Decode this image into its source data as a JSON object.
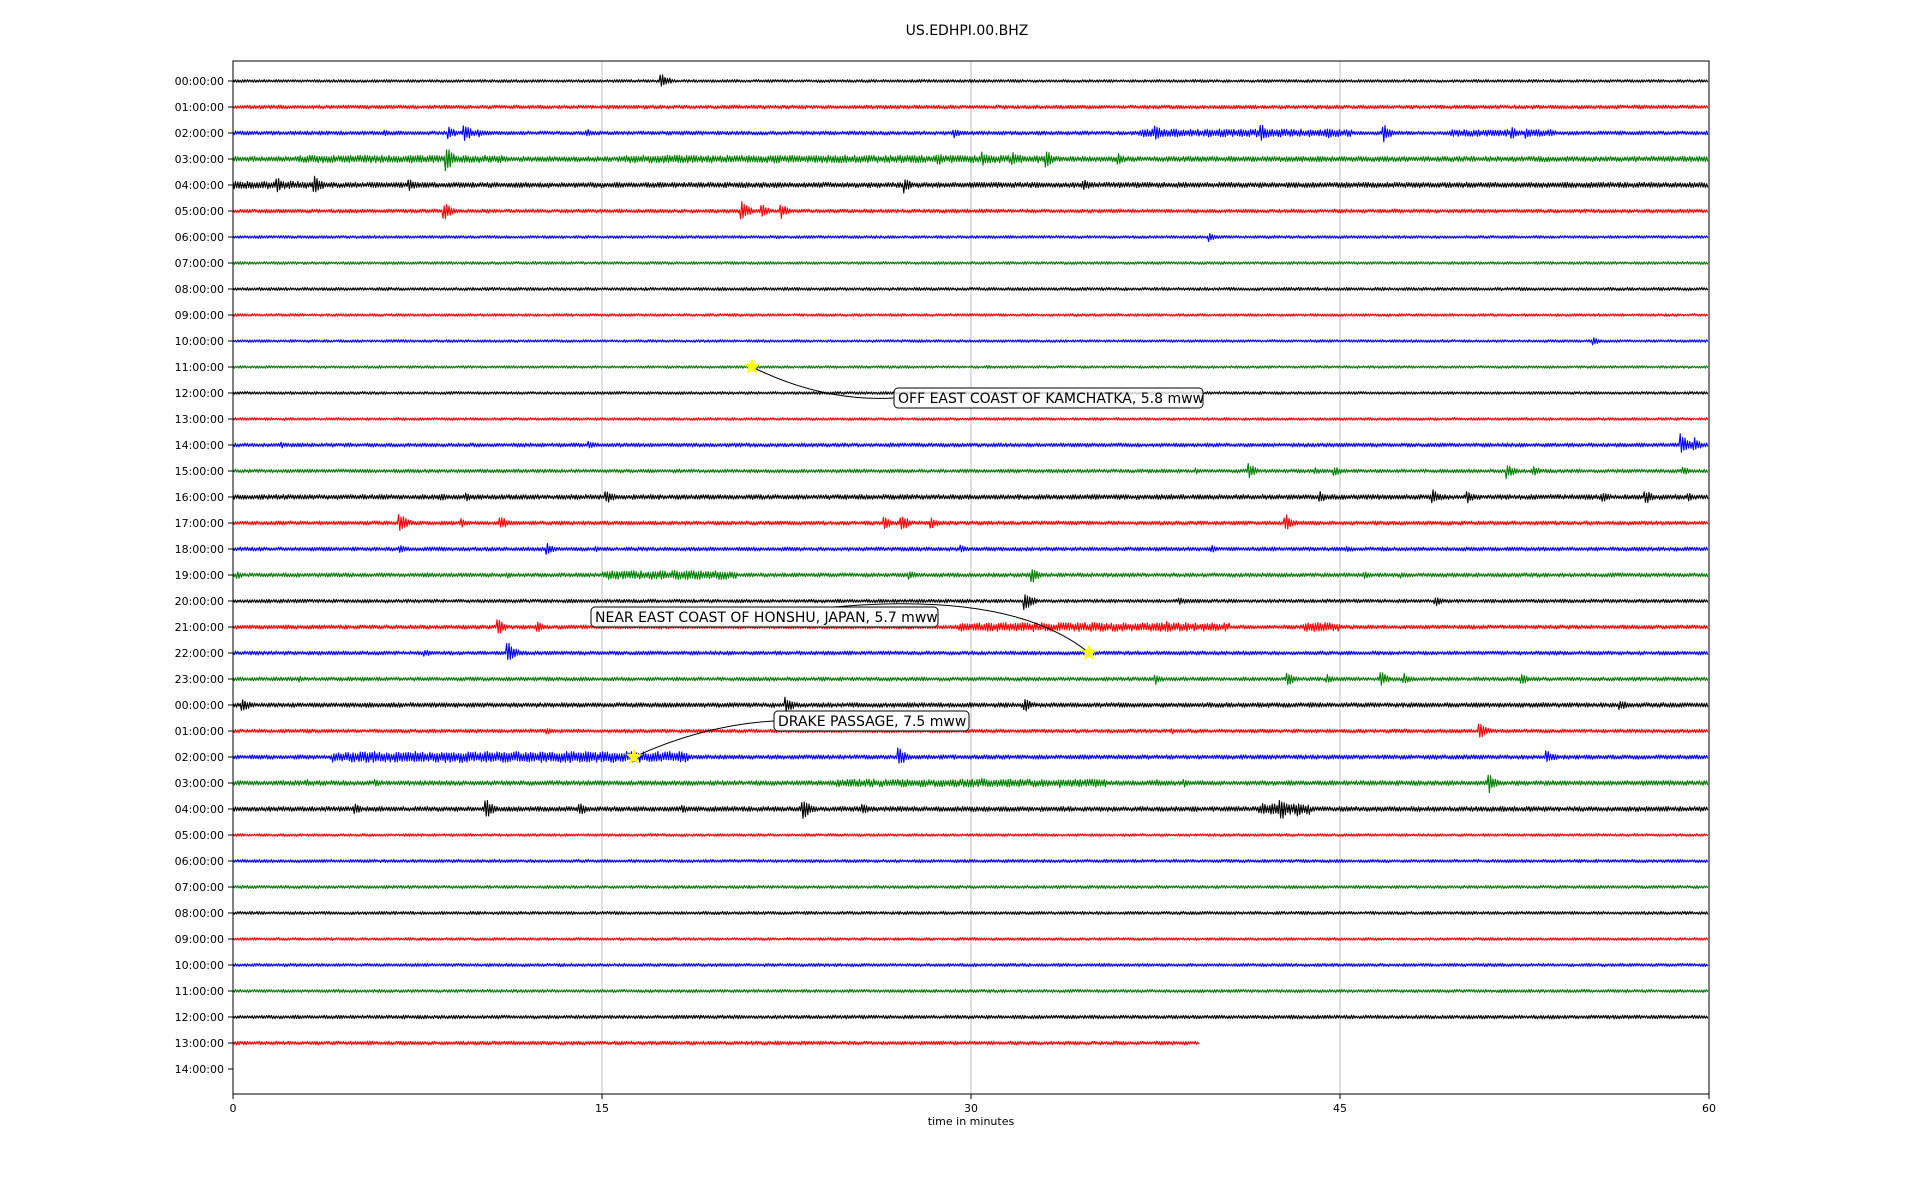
{
  "chart_data": {
    "type": "line",
    "title": "US.EDHPI.00.BHZ",
    "xlabel": "time in minutes",
    "ylabel": "",
    "xlim": [
      0,
      60
    ],
    "x_ticks": [
      0,
      15,
      30,
      45,
      60
    ],
    "x_tick_labels": [
      "0",
      "15",
      "30",
      "45",
      "60"
    ],
    "grid": "vertical lines at x tick positions",
    "row_labels": [
      "00:00:00",
      "01:00:00",
      "02:00:00",
      "03:00:00",
      "04:00:00",
      "05:00:00",
      "06:00:00",
      "07:00:00",
      "08:00:00",
      "09:00:00",
      "10:00:00",
      "11:00:00",
      "12:00:00",
      "13:00:00",
      "14:00:00",
      "15:00:00",
      "16:00:00",
      "17:00:00",
      "18:00:00",
      "19:00:00",
      "20:00:00",
      "21:00:00",
      "22:00:00",
      "23:00:00",
      "00:00:00",
      "01:00:00",
      "02:00:00",
      "03:00:00",
      "04:00:00",
      "05:00:00",
      "06:00:00",
      "07:00:00",
      "08:00:00",
      "09:00:00",
      "10:00:00",
      "11:00:00",
      "12:00:00",
      "13:00:00",
      "14:00:00"
    ],
    "trace_colors": [
      "#000000",
      "#ff0000",
      "#0000ff",
      "#008000"
    ],
    "last_trace_end_minutes": 39.3,
    "traces": [
      {
        "row": 0,
        "noise": 1.2,
        "events": [
          [
            17.4,
            9
          ],
          [
            30,
            2
          ]
        ]
      },
      {
        "row": 1,
        "noise": 1.5,
        "events": []
      },
      {
        "row": 2,
        "noise": 1.6,
        "events": [
          [
            6.2,
            3
          ],
          [
            8.8,
            6
          ],
          [
            9.4,
            10
          ],
          [
            10,
            4
          ],
          [
            14.4,
            4
          ],
          [
            29.3,
            5
          ],
          [
            37.5,
            8
          ],
          [
            41.8,
            10
          ],
          [
            44.5,
            6
          ],
          [
            46.8,
            9
          ],
          [
            52,
            6
          ],
          [
            52.6,
            6
          ],
          [
            53.5,
            5
          ]
        ]
      },
      {
        "row": 3,
        "noise": 2.2,
        "events": [
          [
            8.7,
            12
          ],
          [
            16,
            3
          ],
          [
            28.7,
            6
          ],
          [
            30.5,
            7
          ],
          [
            31.7,
            7
          ],
          [
            33.1,
            9
          ],
          [
            36,
            6
          ],
          [
            38,
            3
          ]
        ]
      },
      {
        "row": 4,
        "noise": 2.2,
        "events": [
          [
            1.8,
            8
          ],
          [
            3.3,
            11
          ],
          [
            7.2,
            6
          ],
          [
            27.3,
            8
          ],
          [
            34.6,
            6
          ]
        ]
      },
      {
        "row": 5,
        "noise": 1.5,
        "events": [
          [
            8.6,
            9
          ],
          [
            20.7,
            10
          ],
          [
            21.5,
            7
          ],
          [
            22.3,
            8
          ]
        ]
      },
      {
        "row": 6,
        "noise": 1.2,
        "events": [
          [
            39.7,
            5
          ]
        ]
      },
      {
        "row": 7,
        "noise": 1.2,
        "events": []
      },
      {
        "row": 8,
        "noise": 1.3,
        "events": []
      },
      {
        "row": 9,
        "noise": 1.1,
        "events": []
      },
      {
        "row": 10,
        "noise": 1.1,
        "events": [
          [
            55.3,
            4
          ]
        ]
      },
      {
        "row": 11,
        "noise": 1.1,
        "events": [
          [
            30.7,
            2
          ]
        ]
      },
      {
        "row": 12,
        "noise": 1.2,
        "events": []
      },
      {
        "row": 13,
        "noise": 1.1,
        "events": []
      },
      {
        "row": 14,
        "noise": 1.6,
        "events": [
          [
            2,
            3
          ],
          [
            14.5,
            4
          ],
          [
            58.9,
            12
          ],
          [
            59.4,
            8
          ]
        ]
      },
      {
        "row": 15,
        "noise": 1.5,
        "events": [
          [
            39.2,
            3
          ],
          [
            41.3,
            8
          ],
          [
            44,
            4
          ],
          [
            44.8,
            5
          ],
          [
            51.8,
            8
          ],
          [
            52.9,
            5
          ],
          [
            59,
            4
          ]
        ]
      },
      {
        "row": 16,
        "noise": 2.0,
        "events": [
          [
            8.5,
            4
          ],
          [
            9.5,
            5
          ],
          [
            15.2,
            7
          ],
          [
            44.2,
            6
          ],
          [
            48.8,
            8
          ],
          [
            50.2,
            6
          ],
          [
            55.7,
            6
          ],
          [
            57.4,
            8
          ],
          [
            59.2,
            4
          ]
        ]
      },
      {
        "row": 17,
        "noise": 1.6,
        "events": [
          [
            6.8,
            10
          ],
          [
            9.3,
            5
          ],
          [
            10.9,
            7
          ],
          [
            26.5,
            6
          ],
          [
            27.2,
            9
          ],
          [
            28.4,
            6
          ],
          [
            42.8,
            9
          ]
        ]
      },
      {
        "row": 18,
        "noise": 1.6,
        "events": [
          [
            6.8,
            4
          ],
          [
            12.8,
            6
          ],
          [
            14.8,
            3
          ],
          [
            29.6,
            4
          ],
          [
            39.8,
            4
          ],
          [
            45.3,
            3
          ]
        ]
      },
      {
        "row": 19,
        "noise": 1.7,
        "events": [
          [
            0.2,
            4
          ],
          [
            11.2,
            3
          ],
          [
            27.5,
            5
          ],
          [
            32.5,
            8
          ],
          [
            46,
            4
          ],
          [
            47.5,
            4
          ]
        ]
      },
      {
        "row": 20,
        "noise": 1.5,
        "events": [
          [
            32.2,
            10
          ],
          [
            38.5,
            4
          ],
          [
            48.9,
            5
          ]
        ]
      },
      {
        "row": 21,
        "noise": 1.6,
        "events": [
          [
            10.8,
            8
          ],
          [
            12.4,
            6
          ],
          [
            38,
            6
          ],
          [
            43.8,
            4
          ]
        ]
      },
      {
        "row": 22,
        "noise": 1.6,
        "events": [
          [
            7.8,
            4
          ],
          [
            11.2,
            11
          ],
          [
            34.9,
            4
          ]
        ]
      },
      {
        "row": 23,
        "noise": 1.6,
        "events": [
          [
            2.7,
            3
          ],
          [
            37.5,
            6
          ],
          [
            42.9,
            7
          ],
          [
            44.5,
            5
          ],
          [
            46.7,
            7
          ],
          [
            47.6,
            6
          ],
          [
            52.4,
            6
          ]
        ]
      },
      {
        "row": 24,
        "noise": 1.9,
        "events": [
          [
            0.4,
            7
          ],
          [
            22.5,
            9
          ],
          [
            32.2,
            7
          ],
          [
            56.4,
            6
          ]
        ]
      },
      {
        "row": 25,
        "noise": 1.5,
        "events": [
          [
            12.8,
            3
          ],
          [
            38.2,
            3
          ],
          [
            50.7,
            8
          ]
        ]
      },
      {
        "row": 26,
        "noise": 1.8,
        "events": [
          [
            4.2,
            4
          ],
          [
            18.3,
            4
          ],
          [
            27.1,
            10
          ],
          [
            53.4,
            8
          ]
        ]
      },
      {
        "row": 27,
        "noise": 2.0,
        "events": [
          [
            3,
            4
          ],
          [
            5.8,
            4
          ],
          [
            30.5,
            5
          ],
          [
            33.6,
            5
          ],
          [
            35,
            5
          ],
          [
            37.6,
            4
          ],
          [
            38.7,
            4
          ],
          [
            51.1,
            10
          ]
        ]
      },
      {
        "row": 28,
        "noise": 2.0,
        "events": [
          [
            5,
            5
          ],
          [
            10.3,
            10
          ],
          [
            14.1,
            7
          ],
          [
            18.3,
            4
          ],
          [
            23.2,
            11
          ],
          [
            25.6,
            6
          ],
          [
            42.6,
            12
          ],
          [
            43.3,
            7
          ]
        ]
      },
      {
        "row": 29,
        "noise": 1.1,
        "events": []
      },
      {
        "row": 30,
        "noise": 1.3,
        "events": []
      },
      {
        "row": 31,
        "noise": 1.3,
        "events": []
      },
      {
        "row": 32,
        "noise": 1.3,
        "events": []
      },
      {
        "row": 33,
        "noise": 1.1,
        "events": []
      },
      {
        "row": 34,
        "noise": 1.3,
        "events": []
      },
      {
        "row": 35,
        "noise": 1.3,
        "events": []
      },
      {
        "row": 36,
        "noise": 1.5,
        "events": []
      },
      {
        "row": 37,
        "noise": 1.5,
        "events": []
      }
    ],
    "sustained_activity": [
      {
        "row": 3,
        "from": 2.5,
        "to": 11,
        "amp": 3.5
      },
      {
        "row": 3,
        "from": 16,
        "to": 33,
        "amp": 3.5
      },
      {
        "row": 2,
        "from": 36.8,
        "to": 45.5,
        "amp": 3.5
      },
      {
        "row": 2,
        "from": 49.5,
        "to": 53.5,
        "amp": 3
      },
      {
        "row": 4,
        "from": 0,
        "to": 3,
        "amp": 3.5
      },
      {
        "row": 19,
        "from": 15,
        "to": 20.5,
        "amp": 4
      },
      {
        "row": 21,
        "from": 29.5,
        "to": 40.5,
        "amp": 4
      },
      {
        "row": 21,
        "from": 43.5,
        "to": 45,
        "amp": 4
      },
      {
        "row": 26,
        "from": 4,
        "to": 18.5,
        "amp": 5
      },
      {
        "row": 27,
        "from": 24.5,
        "to": 35.5,
        "amp": 3.5
      },
      {
        "row": 28,
        "from": 41.7,
        "to": 43.8,
        "amp": 5
      }
    ],
    "events": [
      {
        "label": "OFF EAST COAST OF KAMCHATKA, 5.8 mww",
        "marker_row": 11,
        "marker_minute": 21.1
      },
      {
        "label": "NEAR EAST COAST OF HONSHU, JAPAN, 5.7 mww",
        "marker_row": 22,
        "marker_minute": 34.8
      },
      {
        "label": "DRAKE PASSAGE, 7.5 mww",
        "marker_row": 26,
        "marker_minute": 16.3
      }
    ],
    "marker_color": "#ffff00"
  }
}
